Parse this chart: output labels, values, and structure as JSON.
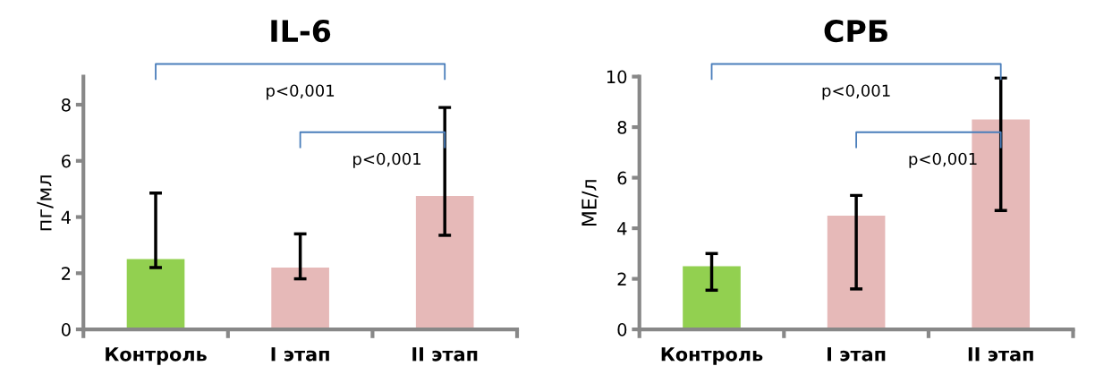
{
  "chart_data": [
    {
      "type": "bar",
      "title": "IL-6",
      "ylabel": "пг/мл",
      "categories": [
        "Контроль",
        "I этап",
        "II этап"
      ],
      "values": [
        2.5,
        2.2,
        4.75
      ],
      "colors": [
        "#92d050",
        "#e6b9b8",
        "#e6b9b8"
      ],
      "errors": [
        [
          2.2,
          4.85
        ],
        [
          1.8,
          3.4
        ],
        [
          3.35,
          7.9
        ]
      ],
      "ylim": [
        0,
        9
      ],
      "yticks": [
        0,
        2,
        4,
        6,
        8
      ],
      "grid": false,
      "legend": false,
      "annotations": [
        "p<0,001",
        "p<0,001"
      ]
    },
    {
      "type": "bar",
      "title": "СРБ",
      "ylabel": "МЕ/л",
      "categories": [
        "Контроль",
        "I этап",
        "II этап"
      ],
      "values": [
        2.5,
        4.5,
        8.3
      ],
      "colors": [
        "#92d050",
        "#e6b9b8",
        "#e6b9b8"
      ],
      "errors": [
        [
          1.55,
          3.0
        ],
        [
          1.6,
          5.3
        ],
        [
          4.7,
          9.95
        ]
      ],
      "ylim": [
        0,
        10
      ],
      "yticks": [
        0,
        2,
        4,
        6,
        8,
        10
      ],
      "grid": false,
      "legend": false,
      "annotations": [
        "p<0,001",
        "p<0,001"
      ]
    }
  ]
}
